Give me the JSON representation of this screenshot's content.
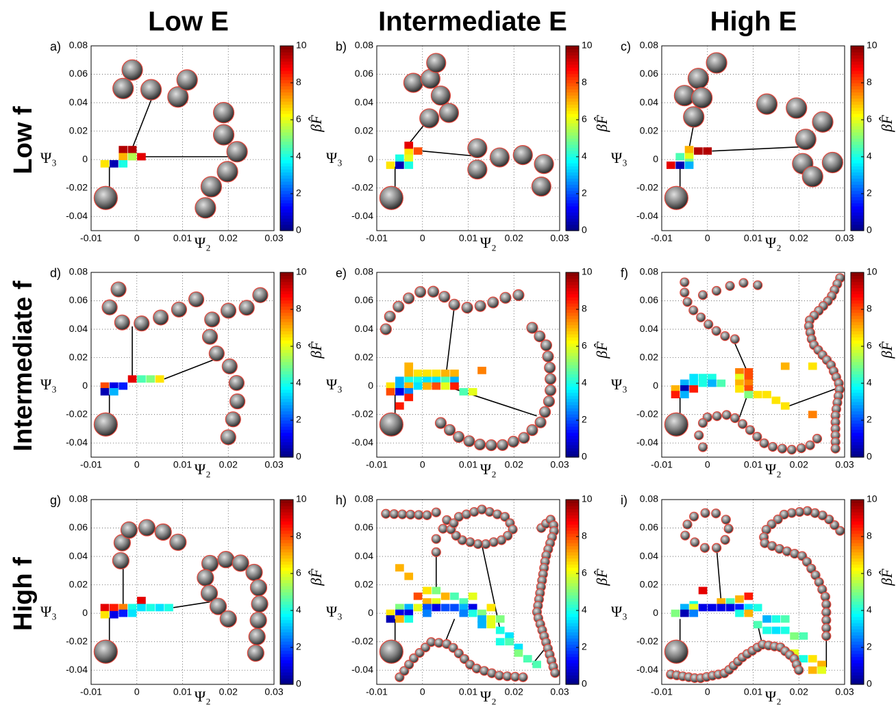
{
  "column_titles": [
    "Low E",
    "Intermediate E",
    "High E"
  ],
  "row_titles": [
    "Low f",
    "Intermediate f",
    "High f"
  ],
  "chart_data": [
    {
      "type": "heatmap",
      "panel_label": "a)",
      "xlabel": "Ψ₂",
      "ylabel": "Ψ₃",
      "colorbar_label": "βF̂",
      "colormap": "jet",
      "grid": true,
      "x": [
        -0.003,
        -0.001,
        -0.003,
        -0.001,
        0.001,
        -0.007,
        -0.005,
        -0.003
      ],
      "y": [
        0.007,
        0.007,
        0.002,
        0.002,
        0.002,
        -0.003,
        -0.003,
        -0.003
      ],
      "values": [
        9.5,
        9.5,
        7,
        5.5,
        9,
        6.5,
        0.5,
        4
      ],
      "xlim": [
        -0.01,
        0.03
      ],
      "ylim": [
        -0.05,
        0.08
      ],
      "xticks": [
        -0.01,
        0,
        0.01,
        0.02,
        0.03
      ],
      "yticks": [
        -0.04,
        -0.02,
        0,
        0.02,
        0.04,
        0.06,
        0.08
      ],
      "clim": [
        0,
        10
      ],
      "cticks": [
        0,
        2,
        4,
        6,
        8,
        10
      ]
    },
    {
      "type": "heatmap",
      "panel_label": "b)",
      "xlabel": "Ψ₂",
      "ylabel": "Ψ₃",
      "colorbar_label": "βF̂",
      "colormap": "jet",
      "grid": true,
      "x": [
        -0.003,
        -0.001,
        -0.003,
        -0.005,
        -0.003,
        -0.007,
        -0.005,
        -0.003
      ],
      "y": [
        0.01,
        0.006,
        0.005,
        0.001,
        0.001,
        -0.004,
        -0.004,
        -0.004
      ],
      "values": [
        9,
        8,
        6.5,
        4,
        6,
        6.5,
        0.5,
        4
      ],
      "xlim": [
        -0.01,
        0.03
      ],
      "ylim": [
        -0.05,
        0.08
      ],
      "xticks": [
        -0.01,
        0,
        0.01,
        0.02,
        0.03
      ],
      "yticks": [
        -0.04,
        -0.02,
        0,
        0.02,
        0.04,
        0.06,
        0.08
      ],
      "clim": [
        0,
        10
      ],
      "cticks": [
        0,
        2,
        4,
        6,
        8,
        10
      ]
    },
    {
      "type": "heatmap",
      "panel_label": "c)",
      "xlabel": "Ψ₂",
      "ylabel": "Ψ₃",
      "colorbar_label": "βF̂",
      "colormap": "jet",
      "grid": true,
      "x": [
        -0.004,
        -0.002,
        0,
        -0.004,
        -0.006,
        -0.004,
        -0.008,
        -0.006,
        -0.004
      ],
      "y": [
        0.007,
        0.006,
        0.006,
        0.002,
        0.002,
        -0.002,
        -0.004,
        -0.004,
        -0.004
      ],
      "values": [
        7,
        9.5,
        9.5,
        6,
        4.5,
        5,
        9,
        0.5,
        3
      ],
      "xlim": [
        -0.01,
        0.03
      ],
      "ylim": [
        -0.05,
        0.08
      ],
      "xticks": [
        -0.01,
        0,
        0.01,
        0.02,
        0.03
      ],
      "yticks": [
        -0.04,
        -0.02,
        0,
        0.02,
        0.04,
        0.06,
        0.08
      ],
      "clim": [
        0,
        10
      ],
      "cticks": [
        0,
        2,
        4,
        6,
        8,
        10
      ]
    },
    {
      "type": "heatmap",
      "panel_label": "d)",
      "xlabel": "Ψ₂",
      "ylabel": "Ψ₃",
      "colorbar_label": "βF̂",
      "colormap": "jet",
      "grid": true,
      "x": [
        -0.001,
        0.001,
        0.003,
        0.005,
        -0.007,
        -0.005,
        -0.003,
        -0.007,
        -0.005
      ],
      "y": [
        0.005,
        0.005,
        0.005,
        0.005,
        0,
        0,
        0,
        -0.004,
        -0.004
      ],
      "values": [
        9,
        4.5,
        5,
        6.5,
        8,
        1,
        1.5,
        0.5,
        3
      ],
      "xlim": [
        -0.01,
        0.03
      ],
      "ylim": [
        -0.05,
        0.08
      ],
      "xticks": [
        -0.01,
        0,
        0.01,
        0.02,
        0.03
      ],
      "yticks": [
        -0.04,
        -0.02,
        0,
        0.02,
        0.04,
        0.06,
        0.08
      ],
      "clim": [
        0,
        10
      ],
      "cticks": [
        0,
        2,
        4,
        6,
        8,
        10
      ]
    },
    {
      "type": "heatmap",
      "panel_label": "e)",
      "xlabel": "Ψ₂",
      "ylabel": "Ψ₃",
      "colorbar_label": "βF̂",
      "colormap": "jet",
      "grid": true,
      "x": [
        -0.003,
        -0.003,
        -0.001,
        0.001,
        0.003,
        0.005,
        0.007,
        0.013,
        -0.005,
        -0.003,
        -0.001,
        0.001,
        0.003,
        0.005,
        0.007,
        -0.007,
        -0.005,
        -0.003,
        -0.001,
        0.001,
        0.003,
        0.005,
        0.007,
        -0.007,
        -0.005,
        -0.003,
        0.009,
        0.011,
        -0.003,
        -0.005
      ],
      "y": [
        0.014,
        0.009,
        0.009,
        0.009,
        0.009,
        0.009,
        0.009,
        0.011,
        0.004,
        0.004,
        0.004,
        0.004,
        0.004,
        0.004,
        0.004,
        0,
        0,
        0,
        0,
        0,
        0,
        0,
        0,
        -0.004,
        -0.004,
        -0.004,
        -0.004,
        -0.004,
        -0.008,
        -0.014
      ],
      "values": [
        7,
        7,
        6.5,
        6.5,
        6.5,
        7,
        7,
        7.5,
        3,
        4,
        4,
        3.5,
        3.5,
        4.5,
        3,
        6.5,
        3,
        7,
        3.5,
        7,
        8,
        6,
        8.5,
        8,
        1,
        2.5,
        4.5,
        6,
        8.5,
        8.5
      ],
      "xlim": [
        -0.01,
        0.03
      ],
      "ylim": [
        -0.05,
        0.08
      ],
      "xticks": [
        -0.01,
        0,
        0.01,
        0.02,
        0.03
      ],
      "yticks": [
        -0.04,
        -0.02,
        0,
        0.02,
        0.04,
        0.06,
        0.08
      ],
      "clim": [
        0,
        10
      ],
      "cticks": [
        0,
        2,
        4,
        6,
        8,
        10
      ]
    },
    {
      "type": "heatmap",
      "panel_label": "f)",
      "xlabel": "Ψ₂",
      "ylabel": "Ψ₃",
      "colorbar_label": "βF̂",
      "colormap": "jet",
      "grid": true,
      "x": [
        0.007,
        0.009,
        0.017,
        0.023,
        -0.003,
        -0.001,
        0.001,
        0.007,
        0.009,
        -0.005,
        -0.003,
        -0.001,
        0.001,
        0.003,
        0.007,
        0.009,
        -0.007,
        -0.005,
        -0.003,
        0.007,
        0.009,
        0.011,
        0.013,
        -0.007,
        -0.005,
        0.009,
        0.015,
        0.017,
        0.023
      ],
      "y": [
        0.01,
        0.01,
        0.014,
        0.014,
        0.006,
        0.006,
        0.006,
        0.006,
        0.006,
        0.002,
        0.002,
        0.002,
        0.002,
        0.002,
        0.002,
        0.002,
        -0.002,
        -0.002,
        -0.002,
        -0.002,
        -0.002,
        -0.006,
        -0.006,
        -0.006,
        -0.006,
        -0.006,
        -0.01,
        -0.014,
        -0.02
      ],
      "values": [
        7.5,
        8,
        7,
        6.5,
        3.5,
        4,
        4,
        6,
        8,
        3,
        3.5,
        4,
        3,
        4.5,
        7,
        7.5,
        7,
        0.5,
        8.5,
        6.5,
        8,
        6.5,
        6.5,
        8.5,
        3,
        5,
        6.5,
        6.5,
        7.5
      ],
      "xlim": [
        -0.01,
        0.03
      ],
      "ylim": [
        -0.05,
        0.08
      ],
      "xticks": [
        -0.01,
        0,
        0.01,
        0.02,
        0.03
      ],
      "yticks": [
        -0.04,
        -0.02,
        0,
        0.02,
        0.04,
        0.06,
        0.08
      ],
      "clim": [
        0,
        10
      ],
      "cticks": [
        0,
        2,
        4,
        6,
        8,
        10
      ]
    },
    {
      "type": "heatmap",
      "panel_label": "g)",
      "xlabel": "Ψ₂",
      "ylabel": "Ψ₃",
      "colorbar_label": "βF̂",
      "colormap": "jet",
      "grid": true,
      "x": [
        0.001,
        -0.007,
        -0.005,
        -0.003,
        -0.001,
        0.001,
        0.003,
        0.005,
        0.007,
        -0.007,
        -0.005,
        -0.003,
        -0.001
      ],
      "y": [
        0.009,
        0.004,
        0.004,
        0.004,
        0.004,
        0.004,
        0.004,
        0.004,
        0.004,
        -0.001,
        -0.001,
        0.0,
        0.0
      ],
      "values": [
        9,
        9,
        8.5,
        7.5,
        4,
        3.5,
        4,
        3.5,
        4,
        6.5,
        1,
        1.5,
        3.5
      ],
      "xlim": [
        -0.01,
        0.03
      ],
      "ylim": [
        -0.05,
        0.08
      ],
      "xticks": [
        -0.01,
        0,
        0.01,
        0.02,
        0.03
      ],
      "yticks": [
        -0.04,
        -0.02,
        0,
        0.02,
        0.04,
        0.06,
        0.08
      ],
      "clim": [
        0,
        10
      ],
      "cticks": [
        0,
        2,
        4,
        6,
        8,
        10
      ]
    },
    {
      "type": "heatmap",
      "panel_label": "h)",
      "xlabel": "Ψ₂",
      "ylabel": "Ψ₃",
      "colorbar_label": "βF̂",
      "colormap": "jet",
      "grid": true,
      "x": [
        -0.005,
        -0.003,
        0.001,
        0.003,
        0.005,
        0.007,
        -0.001,
        0.001,
        0.003,
        0.009,
        0.011,
        0.015,
        -0.005,
        -0.003,
        -0.001,
        0.001,
        0.003,
        0.005,
        0.007,
        0.009,
        0.011,
        0.013,
        -0.007,
        -0.005,
        -0.003,
        0.001,
        0.009,
        0.011,
        0.013,
        0.015,
        0.017,
        -0.007,
        -0.005,
        -0.003,
        0.013,
        0.015,
        0.017,
        0.019,
        0.017,
        0.019,
        0.021,
        0.021,
        0.023,
        0.025
      ],
      "y": [
        0.032,
        0.026,
        0.016,
        0.016,
        0.012,
        0.012,
        0.012,
        0.008,
        0.008,
        0.008,
        0.012,
        0.004,
        0.004,
        0.004,
        0.004,
        0.004,
        0.004,
        0.004,
        0.004,
        0.004,
        0.004,
        0.0,
        0,
        0,
        0,
        0,
        0,
        0,
        -0.004,
        -0.004,
        -0.004,
        -0.004,
        -0.004,
        -0.004,
        -0.008,
        -0.008,
        -0.012,
        -0.016,
        -0.02,
        -0.02,
        -0.024,
        -0.028,
        -0.032,
        -0.036
      ],
      "values": [
        7,
        7,
        6.5,
        5,
        7,
        4.5,
        8,
        7,
        6,
        4.5,
        6,
        6.5,
        5,
        3,
        6,
        2,
        1,
        2,
        2,
        3,
        1,
        5,
        6.5,
        1,
        1,
        2.5,
        2.5,
        4,
        3,
        6,
        5,
        0.5,
        7,
        4,
        3,
        6,
        4,
        3.5,
        4,
        4.5,
        3.5,
        5,
        4.5,
        4.5
      ],
      "xlim": [
        -0.01,
        0.03
      ],
      "ylim": [
        -0.05,
        0.08
      ],
      "xticks": [
        -0.01,
        0,
        0.01,
        0.02,
        0.03
      ],
      "yticks": [
        -0.04,
        -0.02,
        0,
        0.02,
        0.04,
        0.06,
        0.08
      ],
      "clim": [
        0,
        10
      ],
      "cticks": [
        0,
        2,
        4,
        6,
        8,
        10
      ]
    },
    {
      "type": "heatmap",
      "panel_label": "i)",
      "xlabel": "Ψ₂",
      "ylabel": "Ψ₃",
      "colorbar_label": "βF̂",
      "colormap": "jet",
      "grid": true,
      "x": [
        -0.001,
        0.007,
        0.009,
        -0.003,
        0.003,
        0.005,
        -0.005,
        -0.003,
        -0.001,
        0.001,
        0.003,
        0.005,
        0.007,
        0.009,
        0.011,
        -0.007,
        -0.005,
        -0.003,
        0.007,
        0.009,
        0.013,
        0.015,
        0.017,
        0.011,
        0.013,
        0.015,
        0.017,
        0.019,
        0.021,
        0.019,
        0.021,
        0.023,
        0.025,
        0.023,
        0.025
      ],
      "y": [
        0.016,
        0.01,
        0.012,
        0.006,
        0.008,
        0.008,
        0.004,
        0.004,
        0.004,
        0.004,
        0.004,
        0.004,
        0.004,
        0.004,
        0.004,
        0,
        0,
        0,
        0,
        0,
        -0.004,
        -0.004,
        -0.004,
        -0.008,
        -0.012,
        -0.012,
        -0.012,
        -0.016,
        -0.016,
        -0.028,
        -0.032,
        -0.032,
        -0.036,
        -0.04,
        -0.04
      ],
      "values": [
        9,
        7,
        8.5,
        4,
        7,
        4.5,
        3,
        6,
        1,
        1,
        1,
        1,
        1.5,
        3.5,
        4,
        5,
        0.5,
        2.5,
        4,
        7,
        3,
        4,
        4.5,
        4.5,
        4,
        3.5,
        4,
        5,
        4.5,
        6,
        4,
        6.5,
        7,
        7,
        6
      ],
      "xlim": [
        -0.01,
        0.03
      ],
      "ylim": [
        -0.05,
        0.08
      ],
      "xticks": [
        -0.01,
        0,
        0.01,
        0.02,
        0.03
      ],
      "yticks": [
        -0.04,
        -0.02,
        0,
        0.02,
        0.04,
        0.06,
        0.08
      ],
      "clim": [
        0,
        10
      ],
      "cticks": [
        0,
        2,
        4,
        6,
        8,
        10
      ]
    }
  ]
}
